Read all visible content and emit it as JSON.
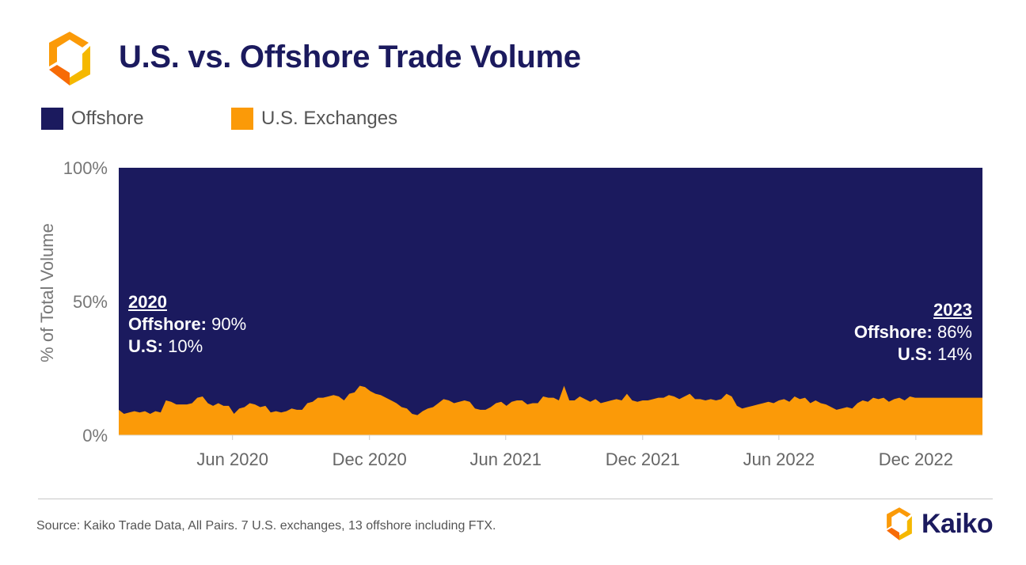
{
  "header": {
    "title": "U.S. vs. Offshore Trade Volume",
    "logo_icon": "kaiko-logo-icon"
  },
  "legend": [
    {
      "label": "Offshore",
      "color": "#1b1a5e"
    },
    {
      "label": "U.S. Exchanges",
      "color": "#fb9a08"
    }
  ],
  "annotations": {
    "left": {
      "year": "2020",
      "offshore_label": "Offshore:",
      "offshore_value": "90%",
      "us_label": "U.S:",
      "us_value": "10%"
    },
    "right": {
      "year": "2023",
      "offshore_label": "Offshore:",
      "offshore_value": "86%",
      "us_label": "U.S:",
      "us_value": "14%"
    }
  },
  "footer": {
    "source": "Source: Kaiko Trade Data, All Pairs. 7 U.S. exchanges, 13 offshore including FTX.",
    "brand": "Kaiko"
  },
  "chart_data": {
    "type": "area",
    "title": "U.S. vs. Offshore Trade Volume",
    "ylabel": "% of Total Volume",
    "xlabel": "",
    "ylim": [
      0,
      100
    ],
    "yticks": [
      {
        "value": 0,
        "label": "0%"
      },
      {
        "value": 50,
        "label": "50%"
      },
      {
        "value": 100,
        "label": "100%"
      }
    ],
    "xticks": [
      {
        "date": "2020-06-01",
        "label": "Jun 2020"
      },
      {
        "date": "2020-12-01",
        "label": "Dec 2020"
      },
      {
        "date": "2021-06-01",
        "label": "Jun 2021"
      },
      {
        "date": "2021-12-01",
        "label": "Dec 2021"
      },
      {
        "date": "2022-06-01",
        "label": "Jun 2022"
      },
      {
        "date": "2022-12-01",
        "label": "Dec 2022"
      }
    ],
    "x_range": [
      "2020-01-01",
      "2023-02-28"
    ],
    "grid": false,
    "legend_position": "top-left",
    "series": [
      {
        "name": "U.S. Exchanges",
        "color": "#fb9a08",
        "points": [
          [
            "2020-01-01",
            9.5
          ],
          [
            "2020-01-08",
            8
          ],
          [
            "2020-01-15",
            8.5
          ],
          [
            "2020-01-22",
            9
          ],
          [
            "2020-01-29",
            8.5
          ],
          [
            "2020-02-05",
            9
          ],
          [
            "2020-02-12",
            8
          ],
          [
            "2020-02-19",
            9
          ],
          [
            "2020-02-26",
            8.5
          ],
          [
            "2020-03-04",
            13
          ],
          [
            "2020-03-11",
            12.5
          ],
          [
            "2020-03-18",
            11.5
          ],
          [
            "2020-03-25",
            11.5
          ],
          [
            "2020-04-01",
            11.5
          ],
          [
            "2020-04-08",
            12
          ],
          [
            "2020-04-15",
            14
          ],
          [
            "2020-04-22",
            14.5
          ],
          [
            "2020-04-29",
            12
          ],
          [
            "2020-05-06",
            11
          ],
          [
            "2020-05-13",
            12
          ],
          [
            "2020-05-20",
            11
          ],
          [
            "2020-05-27",
            11
          ],
          [
            "2020-06-03",
            8
          ],
          [
            "2020-06-10",
            10
          ],
          [
            "2020-06-17",
            10.5
          ],
          [
            "2020-06-24",
            12
          ],
          [
            "2020-07-01",
            11.5
          ],
          [
            "2020-07-08",
            10.5
          ],
          [
            "2020-07-15",
            11
          ],
          [
            "2020-07-22",
            8.5
          ],
          [
            "2020-07-29",
            9
          ],
          [
            "2020-08-05",
            8.5
          ],
          [
            "2020-08-12",
            9
          ],
          [
            "2020-08-19",
            10
          ],
          [
            "2020-08-26",
            9.5
          ],
          [
            "2020-09-02",
            9.5
          ],
          [
            "2020-09-09",
            12
          ],
          [
            "2020-09-16",
            12.5
          ],
          [
            "2020-09-23",
            14
          ],
          [
            "2020-09-30",
            14
          ],
          [
            "2020-10-07",
            14.5
          ],
          [
            "2020-10-14",
            15
          ],
          [
            "2020-10-21",
            14.5
          ],
          [
            "2020-10-28",
            13
          ],
          [
            "2020-11-04",
            15.5
          ],
          [
            "2020-11-11",
            16
          ],
          [
            "2020-11-18",
            18.5
          ],
          [
            "2020-11-25",
            18
          ],
          [
            "2020-12-02",
            16.5
          ],
          [
            "2020-12-09",
            15.5
          ],
          [
            "2020-12-16",
            15
          ],
          [
            "2020-12-23",
            14
          ],
          [
            "2020-12-30",
            13
          ],
          [
            "2021-01-06",
            12
          ],
          [
            "2021-01-13",
            10.5
          ],
          [
            "2021-01-20",
            10
          ],
          [
            "2021-01-27",
            8
          ],
          [
            "2021-02-03",
            7.5
          ],
          [
            "2021-02-10",
            9
          ],
          [
            "2021-02-17",
            10
          ],
          [
            "2021-02-24",
            10.5
          ],
          [
            "2021-03-03",
            12
          ],
          [
            "2021-03-10",
            13.5
          ],
          [
            "2021-03-17",
            13
          ],
          [
            "2021-03-24",
            12
          ],
          [
            "2021-03-31",
            12.5
          ],
          [
            "2021-04-07",
            13
          ],
          [
            "2021-04-14",
            12.5
          ],
          [
            "2021-04-21",
            10
          ],
          [
            "2021-04-28",
            9.5
          ],
          [
            "2021-05-05",
            9.5
          ],
          [
            "2021-05-12",
            10.5
          ],
          [
            "2021-05-19",
            12
          ],
          [
            "2021-05-26",
            12.5
          ],
          [
            "2021-06-02",
            11
          ],
          [
            "2021-06-09",
            12.5
          ],
          [
            "2021-06-16",
            13
          ],
          [
            "2021-06-23",
            13
          ],
          [
            "2021-06-30",
            11.5
          ],
          [
            "2021-07-07",
            12
          ],
          [
            "2021-07-14",
            12
          ],
          [
            "2021-07-21",
            14.5
          ],
          [
            "2021-07-28",
            14
          ],
          [
            "2021-08-04",
            14
          ],
          [
            "2021-08-11",
            13
          ],
          [
            "2021-08-18",
            18.5
          ],
          [
            "2021-08-25",
            13
          ],
          [
            "2021-09-01",
            13
          ],
          [
            "2021-09-08",
            14.5
          ],
          [
            "2021-09-15",
            13.5
          ],
          [
            "2021-09-22",
            12.5
          ],
          [
            "2021-09-29",
            13.5
          ],
          [
            "2021-10-06",
            12
          ],
          [
            "2021-10-13",
            12.5
          ],
          [
            "2021-10-20",
            13
          ],
          [
            "2021-10-27",
            13.5
          ],
          [
            "2021-11-03",
            13
          ],
          [
            "2021-11-10",
            15.5
          ],
          [
            "2021-11-17",
            13
          ],
          [
            "2021-11-24",
            12.5
          ],
          [
            "2021-12-01",
            13
          ],
          [
            "2021-12-08",
            13
          ],
          [
            "2021-12-15",
            13.5
          ],
          [
            "2021-12-22",
            14
          ],
          [
            "2021-12-29",
            14
          ],
          [
            "2022-01-05",
            15
          ],
          [
            "2022-01-12",
            14.5
          ],
          [
            "2022-01-19",
            13.5
          ],
          [
            "2022-01-26",
            14.5
          ],
          [
            "2022-02-02",
            15.5
          ],
          [
            "2022-02-09",
            13.5
          ],
          [
            "2022-02-16",
            13.5
          ],
          [
            "2022-02-23",
            13
          ],
          [
            "2022-03-02",
            13.5
          ],
          [
            "2022-03-09",
            13
          ],
          [
            "2022-03-16",
            13.5
          ],
          [
            "2022-03-23",
            15.5
          ],
          [
            "2022-03-30",
            14.5
          ],
          [
            "2022-04-06",
            11
          ],
          [
            "2022-04-13",
            10
          ],
          [
            "2022-04-20",
            10.5
          ],
          [
            "2022-04-27",
            11
          ],
          [
            "2022-05-04",
            11.5
          ],
          [
            "2022-05-11",
            12
          ],
          [
            "2022-05-18",
            12.5
          ],
          [
            "2022-05-25",
            12
          ],
          [
            "2022-06-01",
            13
          ],
          [
            "2022-06-08",
            13.5
          ],
          [
            "2022-06-15",
            12.5
          ],
          [
            "2022-06-22",
            14.5
          ],
          [
            "2022-06-29",
            13.5
          ],
          [
            "2022-07-06",
            14
          ],
          [
            "2022-07-13",
            12
          ],
          [
            "2022-07-20",
            13
          ],
          [
            "2022-07-27",
            12
          ],
          [
            "2022-08-03",
            11.5
          ],
          [
            "2022-08-10",
            10.5
          ],
          [
            "2022-08-17",
            9.5
          ],
          [
            "2022-08-24",
            10
          ],
          [
            "2022-08-31",
            10.5
          ],
          [
            "2022-09-07",
            10
          ],
          [
            "2022-09-14",
            12
          ],
          [
            "2022-09-21",
            13
          ],
          [
            "2022-09-28",
            12.5
          ],
          [
            "2022-10-05",
            14
          ],
          [
            "2022-10-12",
            13.5
          ],
          [
            "2022-10-19",
            14
          ],
          [
            "2022-10-26",
            12.5
          ],
          [
            "2022-11-02",
            13.5
          ],
          [
            "2022-11-09",
            14
          ],
          [
            "2022-11-16",
            13
          ],
          [
            "2022-11-23",
            14.5
          ],
          [
            "2022-11-30",
            14
          ],
          [
            "2022-12-07",
            14
          ]
        ]
      },
      {
        "name": "Offshore",
        "color": "#1b1a5e",
        "note_fill_to": 100
      }
    ]
  }
}
